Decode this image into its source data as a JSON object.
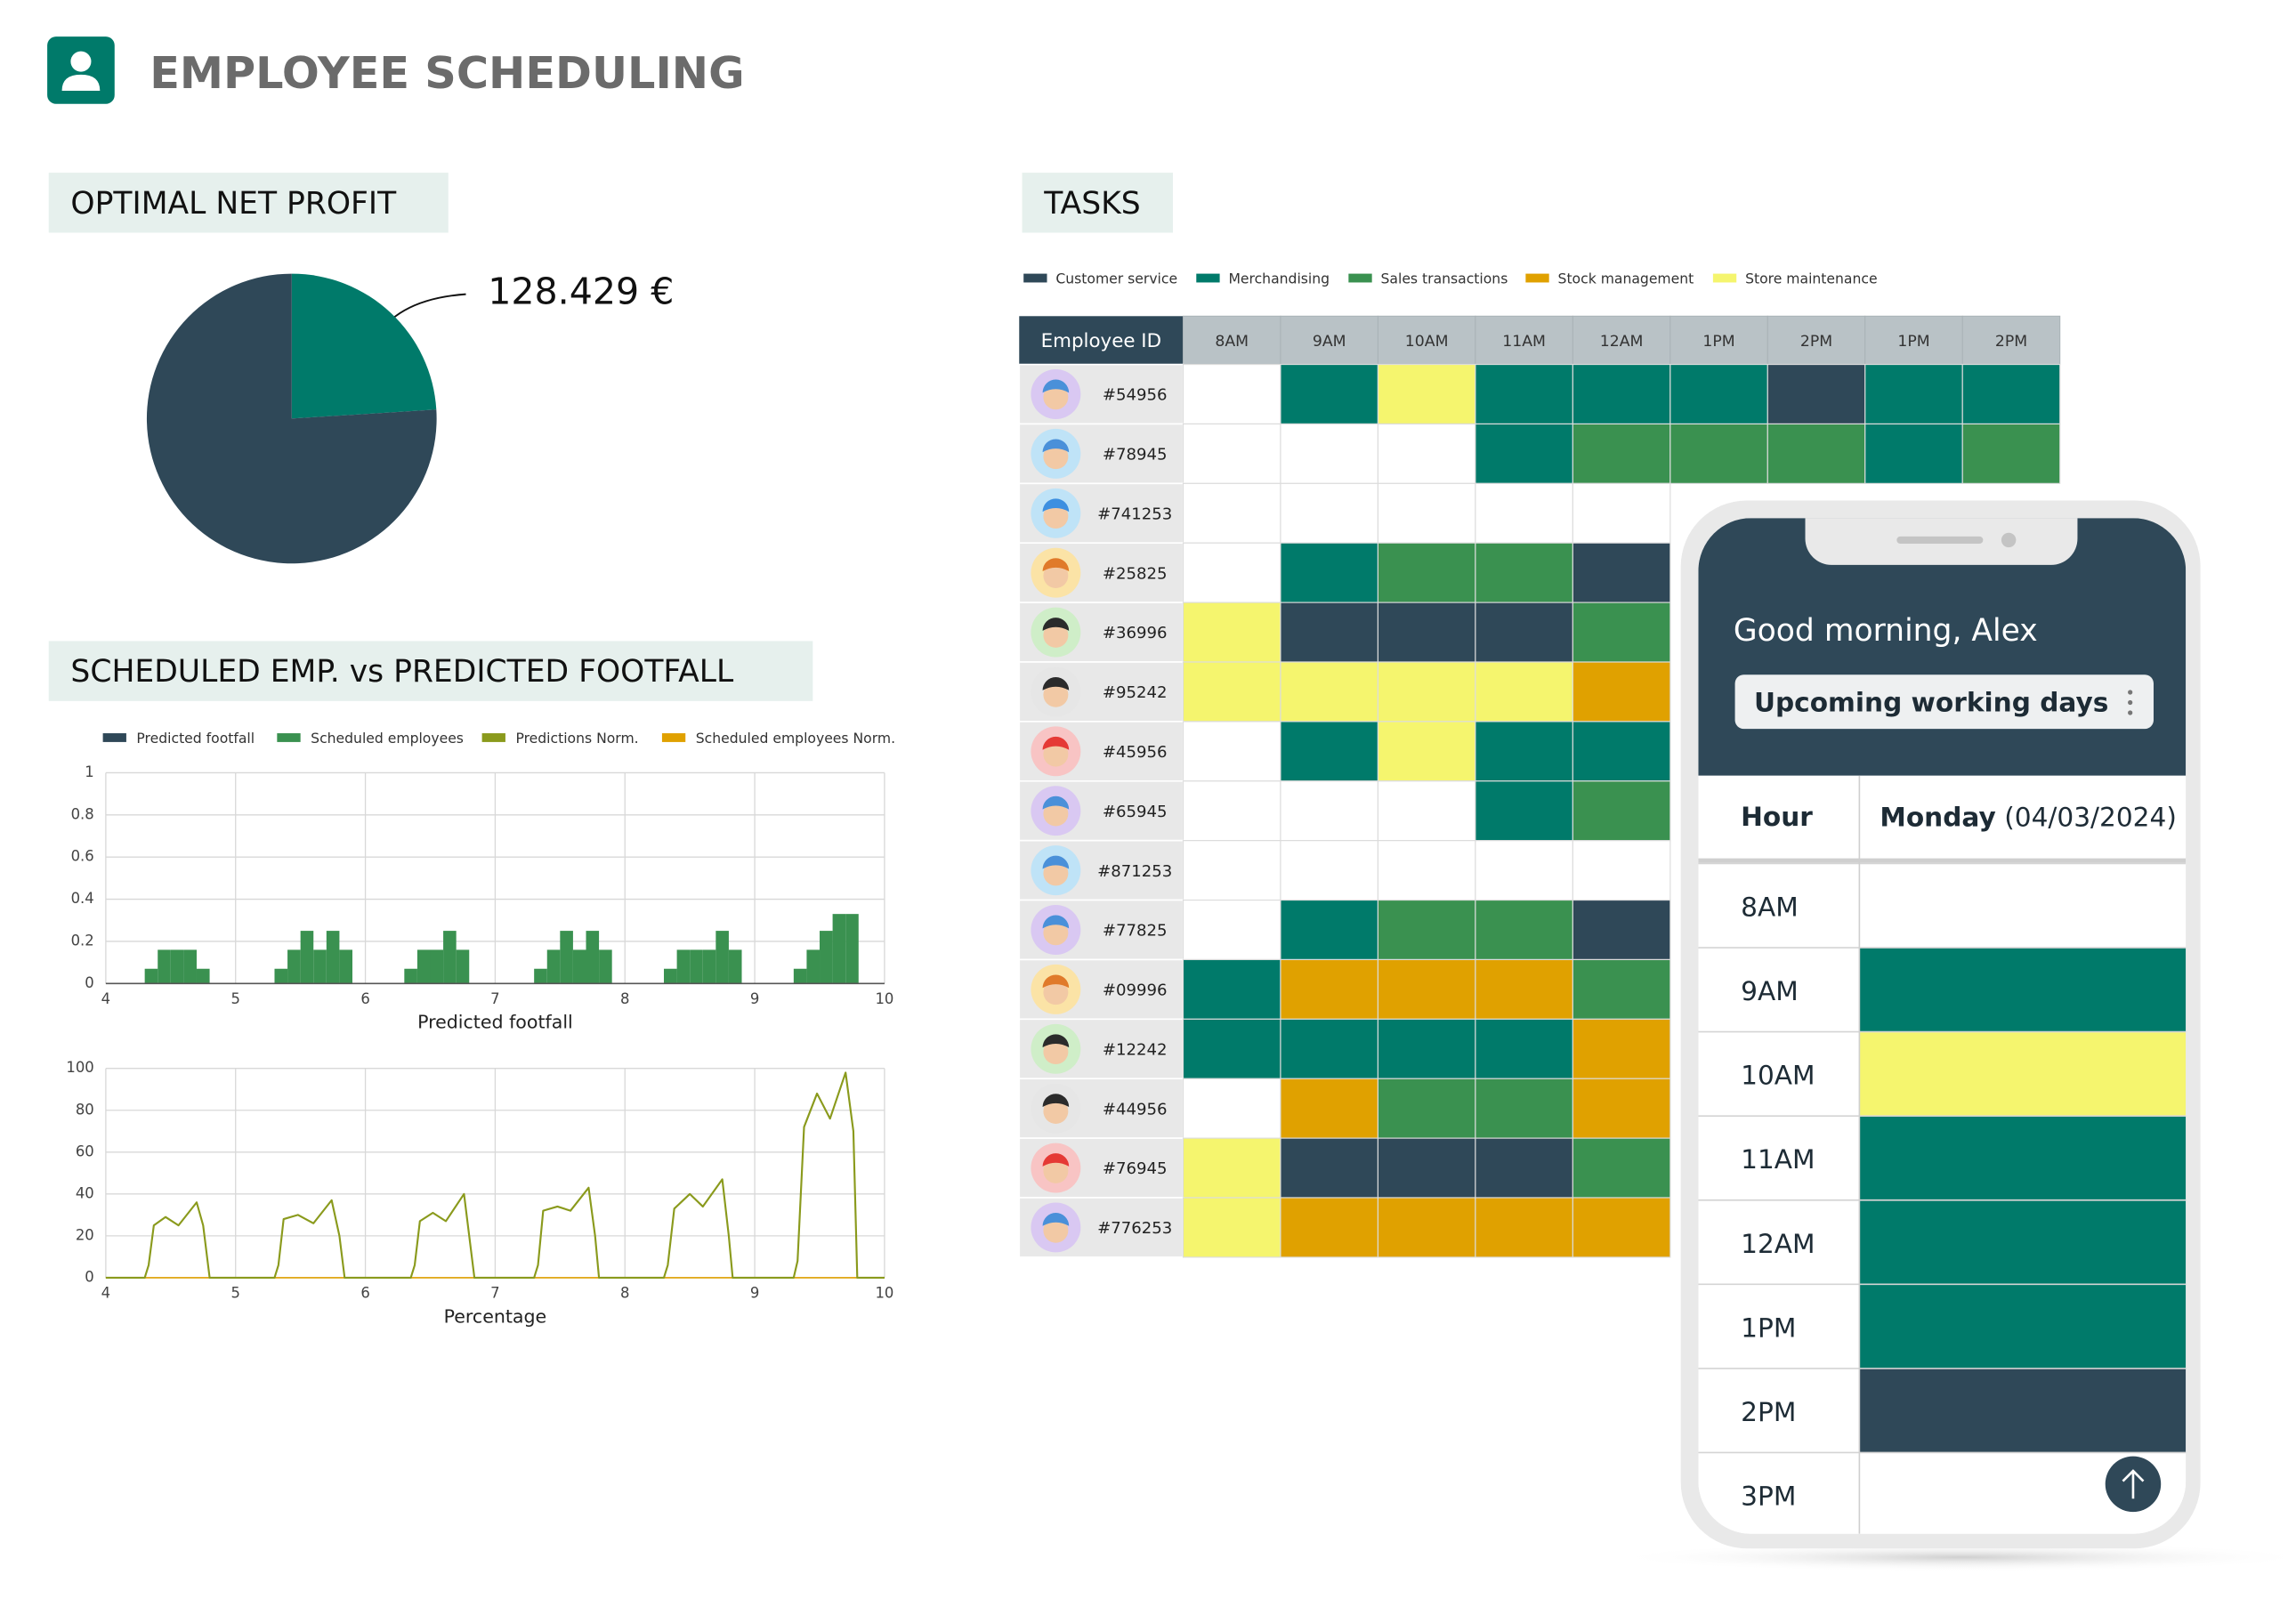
{
  "header": {
    "title": "EMPLOYEE SCHEDULING"
  },
  "profit": {
    "title": "OPTIMAL NET PROFIT",
    "label": "128.429 €"
  },
  "footfall": {
    "title": "SCHEDULED EMP. vs PREDICTED FOOTFALL",
    "legend": [
      {
        "name": "Predicted footfall",
        "color": "#2f4858"
      },
      {
        "name": "Scheduled employees",
        "color": "#3a9150"
      },
      {
        "name": "Predictions Norm.",
        "color": "#8a9a1c"
      },
      {
        "name": "Scheduled employees Norm.",
        "color": "#e0a100"
      }
    ]
  },
  "chart_data": [
    {
      "type": "pie",
      "values": [
        24,
        76
      ],
      "colors": [
        "#007a6a",
        "#2f4858"
      ]
    },
    {
      "type": "histogram",
      "color": "#3a9150",
      "xlabel": "Predicted footfall",
      "grid": true,
      "bins": [
        4,
        4.1,
        4.2,
        4.3,
        4.4,
        4.5,
        4.6,
        4.7,
        4.8,
        4.9,
        5,
        5.1,
        5.2,
        5.3,
        5.4,
        5.5,
        5.6,
        5.7,
        5.8,
        5.9,
        6,
        6.1,
        6.2,
        6.3,
        6.4,
        6.5,
        6.6,
        6.7,
        6.8,
        6.9,
        7,
        7.1,
        7.2,
        7.3,
        7.4,
        7.5,
        7.6,
        7.7,
        7.8,
        7.9,
        8,
        8.1,
        8.2,
        8.3,
        8.4,
        8.5,
        8.6,
        8.7,
        8.8,
        8.9,
        9,
        9.1,
        9.2,
        9.3,
        9.4,
        9.5,
        9.6,
        9.7,
        9.8,
        9.9,
        10
      ],
      "values": [
        0,
        0,
        0,
        0.07,
        0.16,
        0.16,
        0.16,
        0.07,
        0,
        0,
        0,
        0,
        0,
        0.07,
        0.16,
        0.25,
        0.16,
        0.25,
        0.16,
        0,
        0,
        0,
        0,
        0.07,
        0.16,
        0.16,
        0.25,
        0.16,
        0,
        0,
        0,
        0,
        0,
        0.07,
        0.16,
        0.25,
        0.16,
        0.25,
        0.16,
        0,
        0,
        0,
        0,
        0.07,
        0.16,
        0.16,
        0.16,
        0.25,
        0.16,
        0,
        0,
        0,
        0,
        0.07,
        0.16,
        0.25,
        0.33,
        0.33,
        0,
        0
      ],
      "xlim": [
        4,
        10
      ],
      "xticks": [
        4,
        5,
        6,
        7,
        8,
        9,
        10
      ],
      "ylim": [
        0,
        1
      ],
      "yticks": [
        0,
        0.2,
        0.4,
        0.6,
        0.8,
        1
      ]
    },
    {
      "type": "line",
      "color": "#8a9a1c",
      "xlabel": "Percentage",
      "grid": true,
      "x": [
        4,
        4.3,
        4.33,
        4.37,
        4.46,
        4.56,
        4.7,
        4.75,
        4.8,
        5.3,
        5.33,
        5.37,
        5.48,
        5.6,
        5.74,
        5.8,
        5.84,
        6.35,
        6.38,
        6.42,
        6.52,
        6.62,
        6.76,
        6.8,
        6.84,
        7.3,
        7.33,
        7.37,
        7.48,
        7.58,
        7.72,
        7.77,
        7.8,
        8.3,
        8.33,
        8.38,
        8.5,
        8.6,
        8.75,
        8.8,
        8.83,
        9.3,
        9.33,
        9.38,
        9.48,
        9.58,
        9.7,
        9.76,
        9.79,
        10
      ],
      "values": [
        0,
        0,
        6,
        25,
        29,
        25,
        36,
        25,
        0,
        0,
        6,
        28,
        30,
        26,
        37,
        20,
        0,
        0,
        6,
        27,
        31,
        27,
        40,
        20,
        0,
        0,
        6,
        32,
        34,
        32,
        43,
        20,
        0,
        0,
        6,
        33,
        40,
        34,
        47,
        20,
        0,
        0,
        8,
        72,
        88,
        76,
        98,
        70,
        0,
        0
      ],
      "xlim": [
        4,
        10
      ],
      "xticks": [
        4,
        5,
        6,
        7,
        8,
        9,
        10
      ],
      "ylim": [
        0,
        100
      ],
      "yticks": [
        0,
        20,
        40,
        60,
        80,
        100
      ]
    }
  ],
  "tasks": {
    "title": "TASKS",
    "legend": [
      {
        "name": "Customer service",
        "color": "#2f4858"
      },
      {
        "name": "Merchandising",
        "color": "#007a6a"
      },
      {
        "name": "Sales transactions",
        "color": "#3a9150"
      },
      {
        "name": "Stock management",
        "color": "#e0a100"
      },
      {
        "name": "Store maintenance",
        "color": "#f5f56e"
      }
    ],
    "id_header": "Employee ID",
    "hours": [
      "8AM",
      "9AM",
      "10AM",
      "11AM",
      "12AM",
      "1PM",
      "2PM",
      "1PM",
      "2PM"
    ],
    "rows": [
      {
        "id": "#54956",
        "cells": [
          null,
          1,
          4,
          1,
          1,
          1,
          0,
          1,
          1
        ]
      },
      {
        "id": "#78945",
        "cells": [
          null,
          null,
          null,
          1,
          2,
          2,
          2,
          1,
          2
        ]
      },
      {
        "id": "#741253",
        "cells": [
          null,
          null,
          null,
          null,
          null
        ]
      },
      {
        "id": "#25825",
        "cells": [
          null,
          1,
          2,
          2,
          0
        ]
      },
      {
        "id": "#36996",
        "cells": [
          4,
          0,
          0,
          0,
          2
        ]
      },
      {
        "id": "#95242",
        "cells": [
          4,
          4,
          4,
          4,
          3
        ]
      },
      {
        "id": "#45956",
        "cells": [
          null,
          1,
          4,
          1,
          1
        ]
      },
      {
        "id": "#65945",
        "cells": [
          null,
          null,
          null,
          1,
          2
        ]
      },
      {
        "id": "#871253",
        "cells": [
          null,
          null,
          null,
          null,
          null
        ]
      },
      {
        "id": "#77825",
        "cells": [
          null,
          1,
          2,
          2,
          0
        ]
      },
      {
        "id": "#09996",
        "cells": [
          1,
          3,
          3,
          3,
          2
        ]
      },
      {
        "id": "#12242",
        "cells": [
          1,
          1,
          1,
          1,
          3
        ]
      },
      {
        "id": "#44956",
        "cells": [
          null,
          3,
          2,
          2,
          3
        ]
      },
      {
        "id": "#76945",
        "cells": [
          4,
          0,
          0,
          0,
          2
        ]
      },
      {
        "id": "#776253",
        "cells": [
          4,
          3,
          3,
          3,
          3
        ]
      }
    ]
  },
  "phone": {
    "greeting": "Good morning, Alex",
    "button": "Upcoming working days",
    "hour_header": "Hour",
    "day": "Monday",
    "date": "(04/03/2024)",
    "hours": [
      "8AM",
      "9AM",
      "10AM",
      "11AM",
      "12AM",
      "1PM",
      "2PM",
      "3PM"
    ],
    "cells": [
      null,
      1,
      4,
      1,
      1,
      1,
      0,
      null
    ]
  }
}
